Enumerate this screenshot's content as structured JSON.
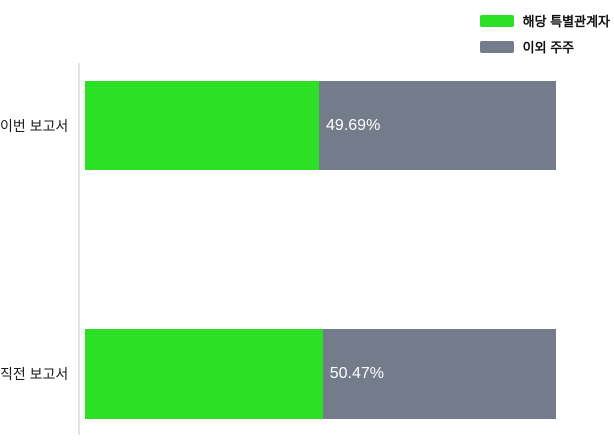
{
  "legend": {
    "items": [
      {
        "label": "해당 특별관계자",
        "color": "#2ce026"
      },
      {
        "label": "이외 주주",
        "color": "#747b8a"
      }
    ]
  },
  "chart_data": {
    "type": "bar",
    "orientation": "horizontal",
    "stacked": true,
    "title": "",
    "xlabel": "",
    "ylabel": "",
    "xlim": [
      0,
      100
    ],
    "grid": false,
    "legend_position": "top-right",
    "categories": [
      "이번 보고서",
      "직전 보고서"
    ],
    "series": [
      {
        "name": "해당 특별관계자",
        "color": "#2ce026",
        "values": [
          49.69,
          50.47
        ]
      },
      {
        "name": "이외 주주",
        "color": "#747b8a",
        "values": [
          50.31,
          49.53
        ]
      }
    ],
    "value_labels": [
      "49.69%",
      "50.47%"
    ]
  },
  "colors": {
    "axis_line": "#e4e4e4",
    "category_text": "#1a1a1a",
    "value_text": "#ffffff",
    "background": "#ffffff"
  }
}
